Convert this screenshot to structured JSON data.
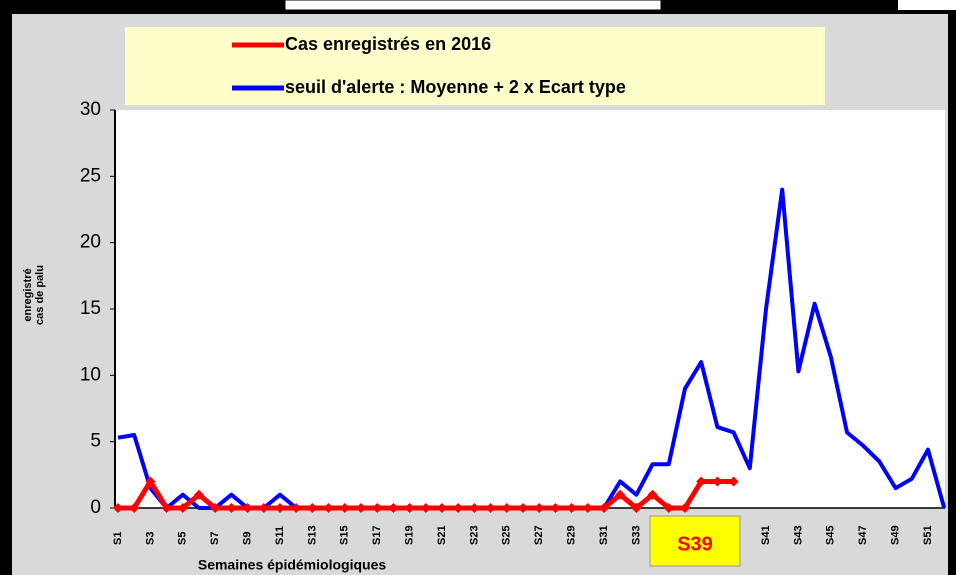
{
  "chart_data": {
    "type": "line",
    "y_label": [
      "cas de palu",
      "enregistré"
    ],
    "x_label": "Semaines épidémiologiques",
    "categories": [
      "S1",
      null,
      "S3",
      null,
      "S5",
      null,
      "S7",
      null,
      "S9",
      null,
      "S11",
      null,
      "S13",
      null,
      "S15",
      null,
      "S17",
      null,
      "S19",
      null,
      "S21",
      null,
      "S23",
      null,
      "S25",
      null,
      "S27",
      null,
      "S29",
      null,
      "S31",
      null,
      "S33",
      null,
      null,
      null,
      null,
      null,
      null,
      null,
      "S41",
      null,
      "S43",
      null,
      "S45",
      null,
      "S47",
      null,
      "S49",
      null,
      "S51",
      null
    ],
    "series": [
      {
        "name": "Cas enregistrés en 2016",
        "color": "#ff0000",
        "values": [
          0,
          0,
          2,
          0,
          0,
          1,
          0,
          0,
          0,
          0,
          0,
          0,
          0,
          0,
          0,
          0,
          0,
          0,
          0,
          0,
          0,
          0,
          0,
          0,
          0,
          0,
          0,
          0,
          0,
          0,
          0,
          1,
          0,
          1,
          0,
          0,
          2,
          2,
          2,
          null,
          null,
          null,
          null,
          null,
          null,
          null,
          null,
          null,
          null,
          null,
          null,
          null
        ]
      },
      {
        "name": "seuil d'alerte : Moyenne + 2 x Ecart type",
        "color": "#0000ff",
        "values": [
          5.3,
          5.5,
          1.5,
          0,
          1,
          0,
          0,
          1,
          0,
          0,
          1,
          0,
          0,
          0,
          0,
          0,
          0,
          0,
          0,
          0,
          0,
          0,
          0,
          0,
          0,
          0,
          0,
          0,
          0,
          0,
          0,
          2,
          1,
          3.3,
          3.3,
          9,
          11,
          6.1,
          5.7,
          3,
          15,
          24,
          10.3,
          15.4,
          11.4,
          5.7,
          4.7,
          3.5,
          1.5,
          2.2,
          4.4,
          0
        ]
      }
    ],
    "ylim": [
      0,
      30
    ],
    "yticks": [
      0,
      5,
      10,
      15,
      20,
      25,
      30
    ],
    "legend": "top",
    "annotation": {
      "text": "S39",
      "background": "#ffff00",
      "color": "#ff0000"
    }
  }
}
